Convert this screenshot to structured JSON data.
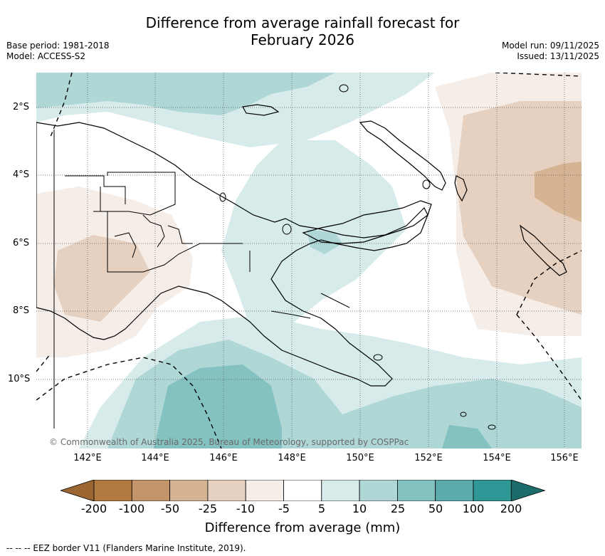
{
  "header": {
    "title_line1": "Difference from average rainfall forecast for",
    "title_line2": "February 2026",
    "base_period": "Base period: 1981-2018",
    "model": "Model: ACCESS-S2",
    "model_run": "Model run: 09/11/2025",
    "issued": "Issued: 13/11/2025"
  },
  "map": {
    "lat_labels": [
      "2°S",
      "4°S",
      "6°S",
      "8°S",
      "10°S"
    ],
    "lon_labels": [
      "142°E",
      "144°E",
      "146°E",
      "148°E",
      "150°E",
      "152°E",
      "154°E",
      "156°E"
    ],
    "copyright": "© Commonwealth of Australia 2025, Bureau of Meteorology, supported by COSPPac"
  },
  "colorbar": {
    "labels": [
      "-200",
      "-100",
      "-50",
      "-25",
      "-10",
      "-5",
      "5",
      "10",
      "25",
      "50",
      "100",
      "200"
    ],
    "colors": [
      "#9b6631",
      "#b07a40",
      "#c4956a",
      "#d5b393",
      "#e6d0bf",
      "#f5ede8",
      "#ffffff",
      "#d6ebea",
      "#aed7d6",
      "#84c2c1",
      "#5bacab",
      "#2f9896",
      "#1b6d6b"
    ],
    "title": "Difference from average (mm)"
  },
  "footer": {
    "eez_note": "-- -- -- EEZ border V11 (Flanders Marine Institute, 2019)."
  }
}
